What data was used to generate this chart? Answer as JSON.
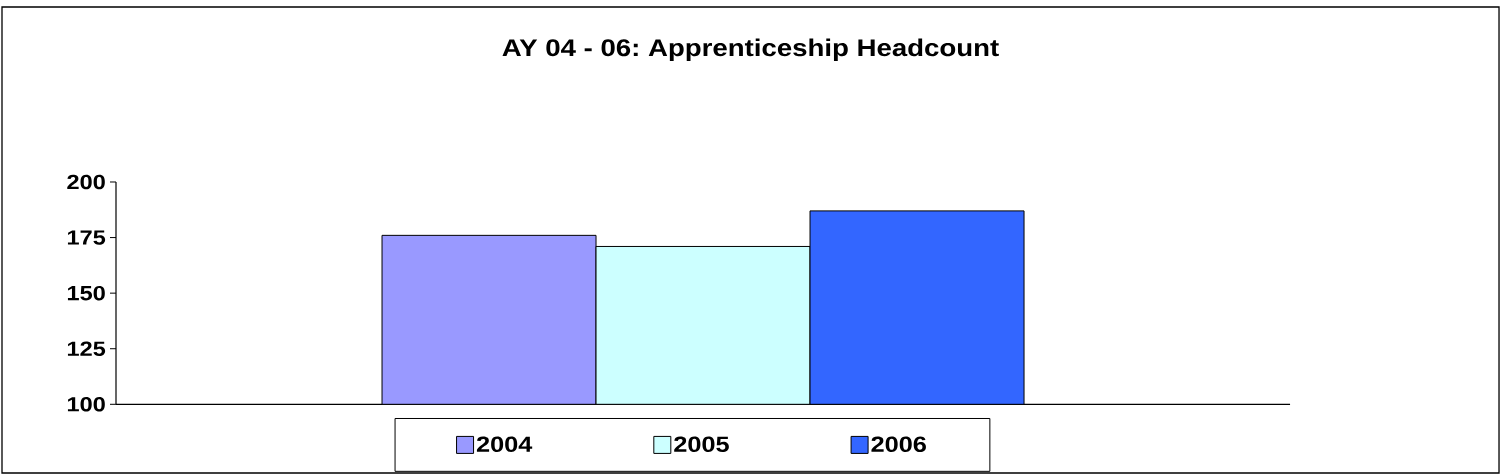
{
  "chart_data": {
    "type": "bar",
    "title": "AY 04 - 06: Apprenticeship Headcount",
    "categories": [
      null
    ],
    "series": [
      {
        "name": "2004",
        "color": "#9999ff",
        "values": [
          176
        ]
      },
      {
        "name": "2005",
        "color": "#ccffff",
        "values": [
          171
        ]
      },
      {
        "name": "2006",
        "color": "#3366ff",
        "values": [
          187
        ]
      }
    ],
    "ylim": [
      100,
      200
    ],
    "yticks": [
      100,
      125,
      150,
      175,
      200
    ],
    "legend": "bottom"
  }
}
